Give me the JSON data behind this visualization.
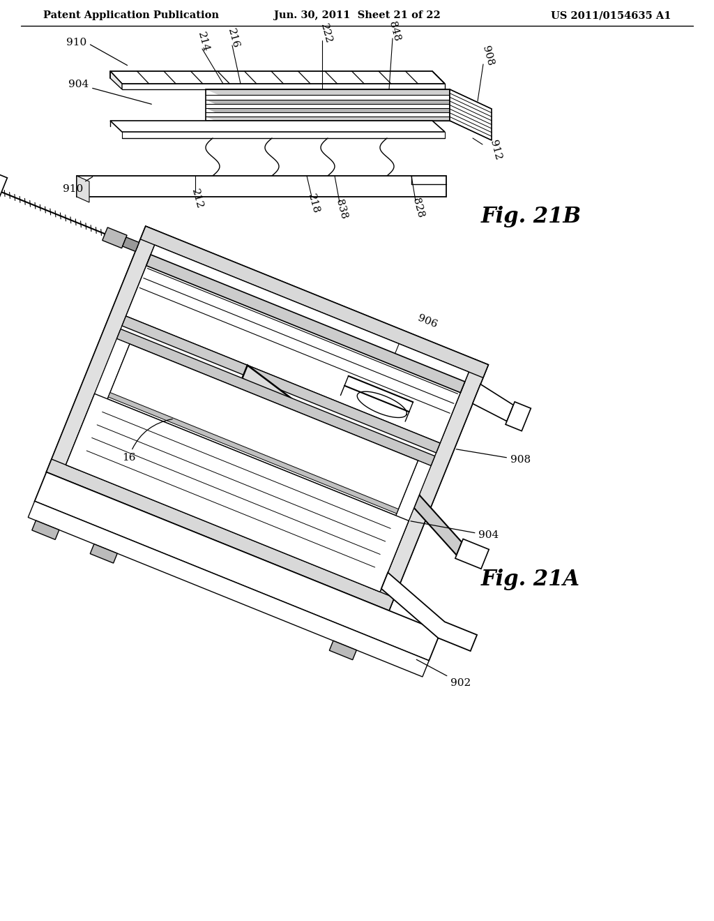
{
  "background_color": "#ffffff",
  "header_left": "Patent Application Publication",
  "header_center": "Jun. 30, 2011  Sheet 21 of 22",
  "header_right": "US 2011/0154635 A1",
  "fig21b_label": "Fig. 21B",
  "fig21a_label": "Fig. 21A",
  "line_color": "#000000",
  "text_color": "#000000"
}
